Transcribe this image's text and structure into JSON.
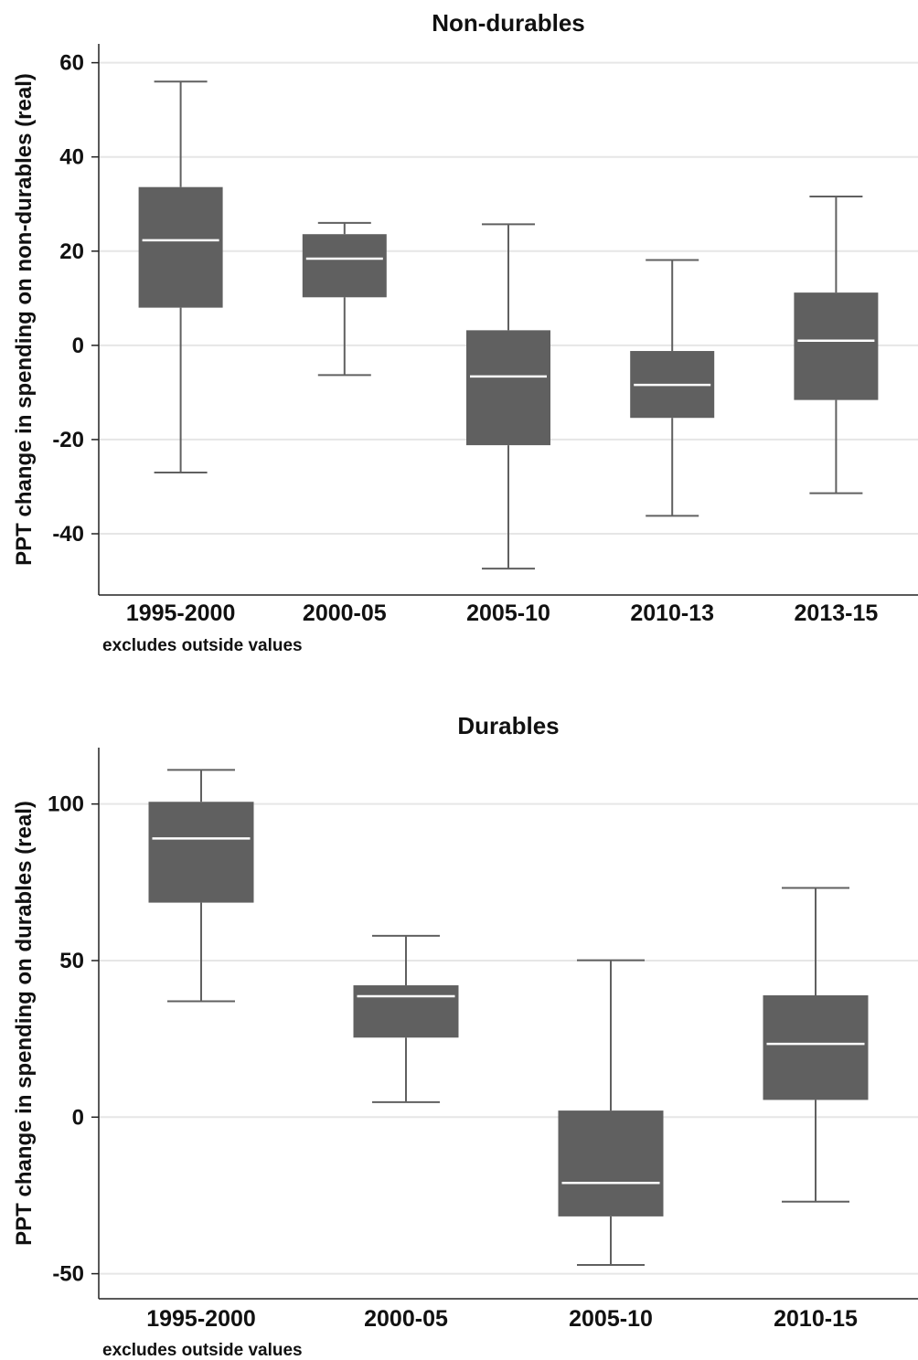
{
  "chart_data": [
    {
      "type": "box",
      "title": "Non-durables",
      "ylabel": "PPT change in spending on non-durables (real)",
      "note": "excludes outside values",
      "ylim": [
        -53,
        64
      ],
      "yticks": [
        60,
        40,
        20,
        0,
        -20,
        -40
      ],
      "ytick_labels": [
        "60",
        "40",
        "20",
        "0",
        "-20",
        "-40"
      ],
      "grid": true,
      "box_color": "#606060",
      "categories": [
        "1995-2000",
        "2000-05",
        "2005-10",
        "2010-13",
        "2013-15"
      ],
      "boxes": [
        {
          "whisker_low": -27,
          "q1": 8,
          "median": 22.3,
          "q3": 33.6,
          "whisker_high": 56
        },
        {
          "whisker_low": -6.3,
          "q1": 10.2,
          "median": 18.4,
          "q3": 23.6,
          "whisker_high": 26
        },
        {
          "whisker_low": -47.4,
          "q1": -21.2,
          "median": -6.6,
          "q3": 3.2,
          "whisker_high": 25.7
        },
        {
          "whisker_low": -36.2,
          "q1": -15.4,
          "median": -8.4,
          "q3": -1.2,
          "whisker_high": 18.1
        },
        {
          "whisker_low": -31.4,
          "q1": -11.6,
          "median": 1,
          "q3": 11.2,
          "whisker_high": 31.6
        }
      ]
    },
    {
      "type": "box",
      "title": "Durables",
      "ylabel": "PPT change in spending on durables (real)",
      "note": "excludes outside values",
      "ylim": [
        -58,
        118
      ],
      "yticks": [
        100,
        50,
        0,
        -50
      ],
      "ytick_labels": [
        "100",
        "50",
        "0",
        "-50"
      ],
      "grid": true,
      "box_color": "#606060",
      "categories": [
        "1995-2000",
        "2000-05",
        "2005-10",
        "2010-15"
      ],
      "boxes": [
        {
          "whisker_low": 37,
          "q1": 68.5,
          "median": 89,
          "q3": 100.7,
          "whisker_high": 110.9
        },
        {
          "whisker_low": 4.8,
          "q1": 25.4,
          "median": 38.6,
          "q3": 42.1,
          "whisker_high": 57.9
        },
        {
          "whisker_low": -47.2,
          "q1": -31.7,
          "median": -21,
          "q3": 2.1,
          "whisker_high": 50.1
        },
        {
          "whisker_low": -27,
          "q1": 5.5,
          "median": 23.4,
          "q3": 38.9,
          "whisker_high": 73.2
        }
      ]
    }
  ]
}
